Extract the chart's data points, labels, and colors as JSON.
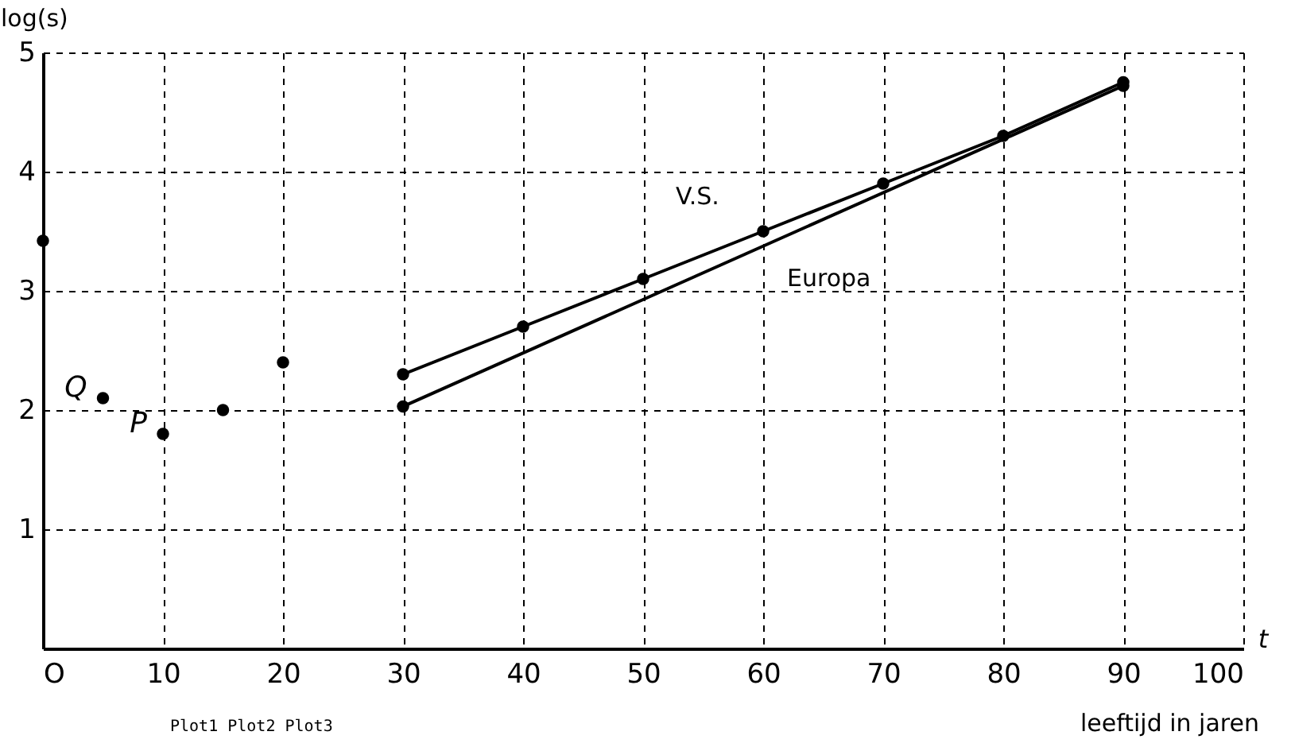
{
  "chart_data": {
    "type": "line",
    "xlabel": "t",
    "ylabel": "log(s)",
    "xlim": [
      0,
      100
    ],
    "ylim": [
      0,
      5
    ],
    "xticks": [
      {
        "value": 0,
        "label": "O"
      },
      10,
      20,
      30,
      40,
      50,
      60,
      70,
      80,
      90,
      100
    ],
    "yticks": [
      1,
      2,
      3,
      4,
      5
    ],
    "grid": true,
    "legend": false,
    "marker": "circle",
    "series": [
      {
        "type": "scatter",
        "color": "#000000",
        "x": [
          0,
          5,
          10,
          15,
          20
        ],
        "values": [
          3.42,
          2.1,
          1.8,
          2.0,
          2.4
        ]
      },
      {
        "name": "V.S.",
        "color": "#000000",
        "x": [
          30,
          40,
          50,
          60,
          70,
          80,
          90
        ],
        "values": [
          2.3,
          2.7,
          3.1,
          3.5,
          3.9,
          4.3,
          4.75
        ]
      },
      {
        "name": "Europa",
        "color": "#000000",
        "x": [
          30,
          90
        ],
        "values": [
          2.03,
          4.72
        ]
      }
    ],
    "annotations": [
      {
        "text": "Q",
        "x": 5,
        "y": 2.1
      },
      {
        "text": "P",
        "x": 10,
        "y": 1.8
      },
      "leeftijd in jaren",
      "Plot1 Plot2 Plot3"
    ]
  }
}
